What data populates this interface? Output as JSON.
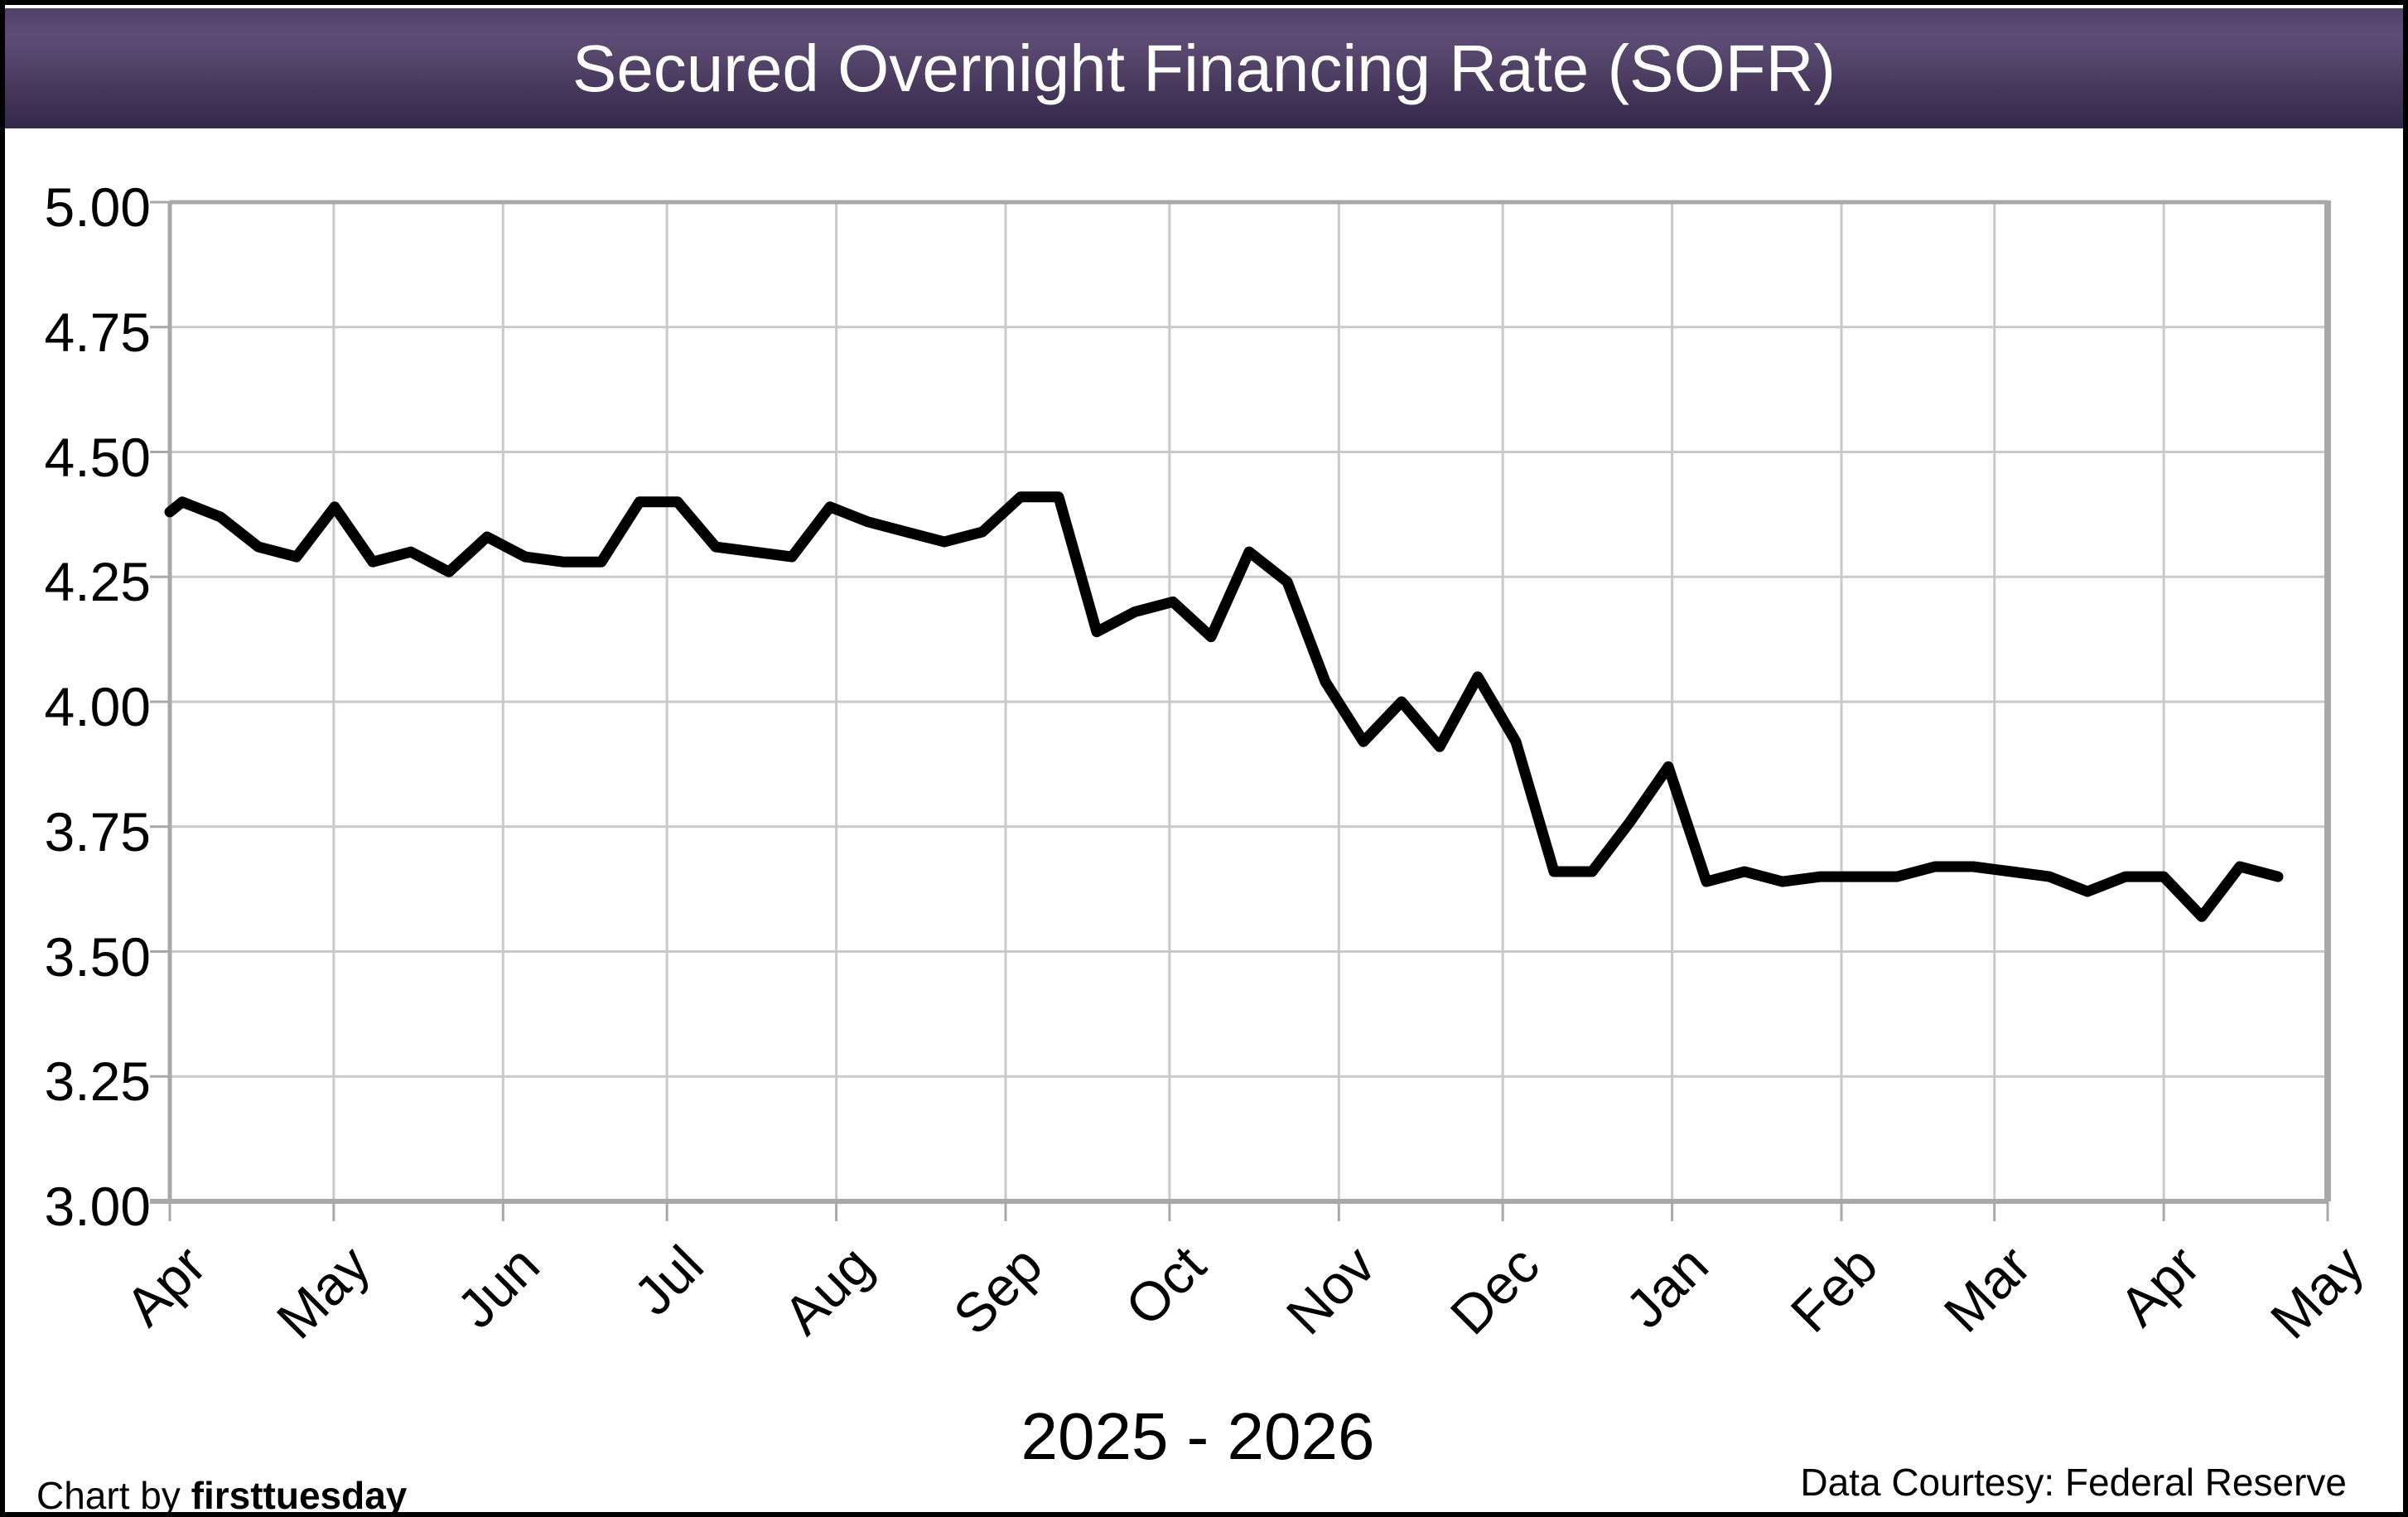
{
  "title": "Secured Overnight Financing Rate (SOFR)",
  "x_axis": {
    "month_labels": [
      "Apr",
      "May",
      "Jun",
      "Jul",
      "Aug",
      "Sep",
      "Oct",
      "Nov",
      "Dec",
      "Jan",
      "Feb",
      "Mar",
      "Apr",
      "May"
    ],
    "period_label": "2025 - 2026"
  },
  "y_axis": {
    "tick_labels": [
      "5.00",
      "4.75",
      "4.50",
      "4.25",
      "4.00",
      "3.75",
      "3.50",
      "3.25",
      "3.00"
    ]
  },
  "footer": {
    "credit_prefix": "Chart by ",
    "credit_brand": "firsttuesday",
    "source": "Data Courtesy: Federal Reserve"
  },
  "colors": {
    "title_bar_top": "#514167",
    "title_bar_light": "#5e4c76",
    "title_bar_bottom": "#33294a",
    "title_text": "#ffffff",
    "gridline": "#c9c9c9",
    "plot_border": "#a8a8a8",
    "series_line": "#000000",
    "frame_border": "#000000"
  },
  "chart_data": {
    "type": "line",
    "title": "Secured Overnight Financing Rate (SOFR)",
    "series_name": "SOFR",
    "unit": "percent",
    "frequency": "weekly",
    "x_range_label": "2025 - 2026",
    "x_months": [
      "Apr 2025",
      "May 2025",
      "Jun 2025",
      "Jul 2025",
      "Aug 2025",
      "Sep 2025",
      "Oct 2025",
      "Nov 2025",
      "Dec 2025",
      "Jan 2026",
      "Feb 2026",
      "Mar 2026",
      "Apr 2026",
      "May 2026"
    ],
    "ylim": [
      3.0,
      5.0
    ],
    "ytick_step": 0.25,
    "grid": true,
    "legend": "none",
    "values": [
      4.38,
      4.4,
      4.37,
      4.31,
      4.29,
      4.39,
      4.28,
      4.3,
      4.26,
      4.33,
      4.29,
      4.28,
      4.28,
      4.4,
      4.4,
      4.31,
      4.3,
      4.29,
      4.39,
      4.36,
      4.34,
      4.32,
      4.34,
      4.41,
      4.41,
      4.14,
      4.18,
      4.2,
      4.13,
      4.3,
      4.24,
      4.04,
      3.92,
      4.0,
      3.91,
      4.05,
      3.92,
      3.66,
      3.66,
      3.76,
      3.87,
      3.64,
      3.66,
      3.64,
      3.65,
      3.65,
      3.65,
      3.67,
      3.67,
      3.66,
      3.65,
      3.62,
      3.65,
      3.65,
      3.57,
      3.67,
      3.65
    ]
  }
}
